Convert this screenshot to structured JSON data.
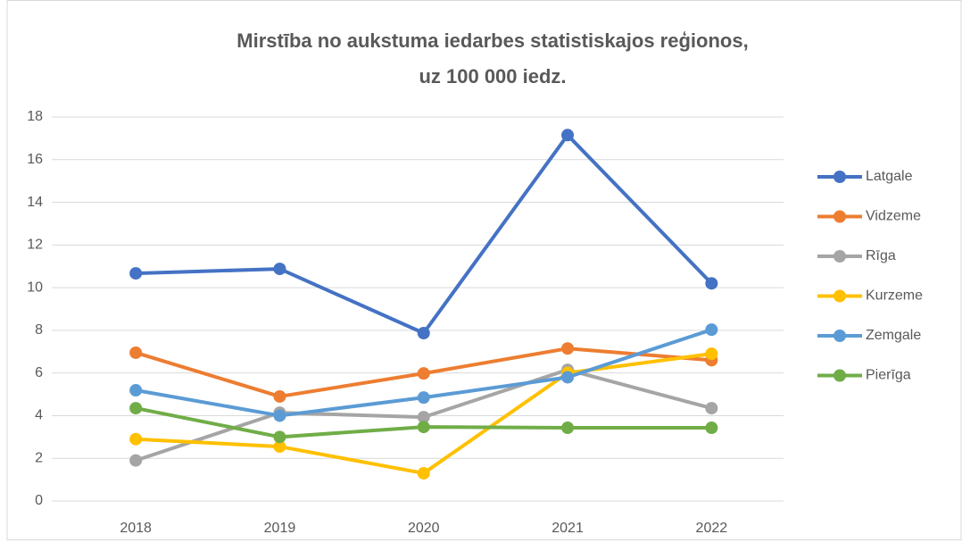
{
  "chart_data": {
    "type": "line",
    "title": [
      "Mirstība no aukstuma iedarbes statistiskajos reģionos,",
      "uz 100 000 iedz."
    ],
    "categories": [
      "2018",
      "2019",
      "2020",
      "2021",
      "2022"
    ],
    "series": [
      {
        "name": "Latgale",
        "color": "#4472c4",
        "values": [
          10.67,
          10.88,
          7.87,
          17.15,
          10.2
        ]
      },
      {
        "name": "Vidzeme",
        "color": "#ed7d31",
        "values": [
          6.95,
          4.9,
          5.98,
          7.15,
          6.6
        ]
      },
      {
        "name": "Rīga",
        "color": "#a5a5a5",
        "values": [
          1.9,
          4.14,
          3.93,
          6.15,
          4.35
        ]
      },
      {
        "name": "Kurzeme",
        "color": "#ffc000",
        "values": [
          2.9,
          2.55,
          1.3,
          6.0,
          6.9
        ]
      },
      {
        "name": "Zemgale",
        "color": "#5b9bd5",
        "values": [
          5.19,
          4.0,
          4.85,
          5.8,
          8.03
        ]
      },
      {
        "name": "Pierīga",
        "color": "#70ad47",
        "values": [
          4.35,
          3.0,
          3.47,
          3.43,
          3.43
        ]
      }
    ],
    "ylim": [
      0,
      18
    ],
    "yticks": [
      0,
      2,
      4,
      6,
      8,
      10,
      12,
      14,
      16,
      18
    ],
    "grid": true,
    "legend": "right"
  }
}
